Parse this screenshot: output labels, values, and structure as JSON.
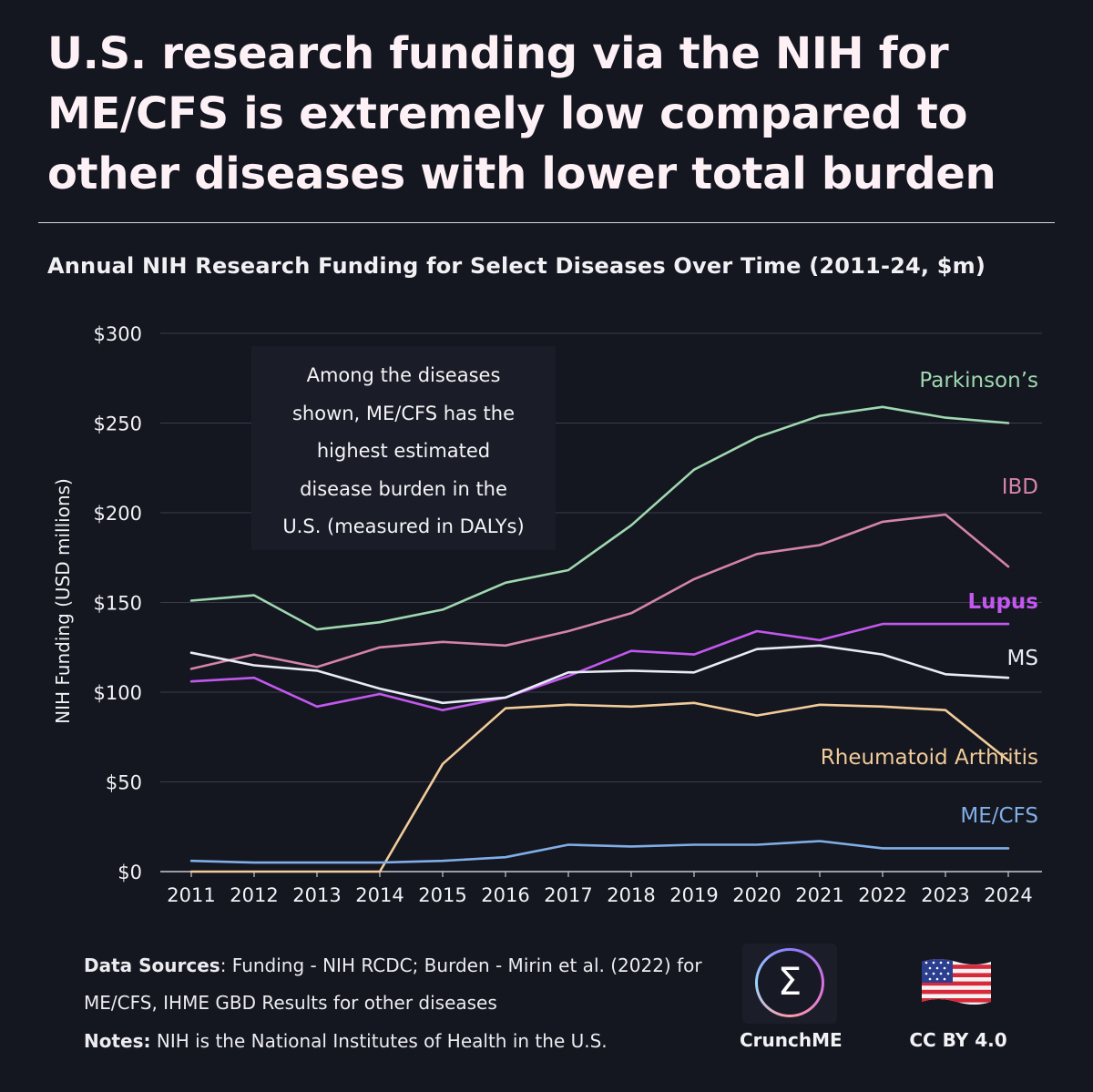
{
  "headline": "U.S. research funding via the NIH for ME/CFS is extremely low compared to other diseases with lower total burden",
  "callout": {
    "lines": [
      "Among the diseases",
      "shown, ME/CFS has the",
      "highest estimated",
      "disease burden in the",
      "U.S. (measured in DALYs)"
    ]
  },
  "footer": {
    "sources_label": "Data Sources",
    "sources_text": ": Funding - NIH RCDC; Burden - Mirin et al. (2022) for ME/CFS, IHME GBD Results for other diseases",
    "notes_label": "Notes:",
    "notes_text": " NIH is the National Institutes of Health in the U.S."
  },
  "branding": {
    "logo_symbol": "Σ",
    "logo_name": "CrunchME",
    "flag_icon": "us-flag-icon",
    "license": "CC BY 4.0"
  },
  "chart_data": {
    "type": "line",
    "title": "Annual NIH Research Funding for Select Diseases Over Time (2011-24, $m)",
    "ylabel": "NIH Funding (USD millions)",
    "xlabel": "",
    "ylim": [
      0,
      300
    ],
    "y_ticks": [
      0,
      50,
      100,
      150,
      200,
      250,
      300
    ],
    "y_tick_labels": [
      "$0",
      "$50",
      "$100",
      "$150",
      "$200",
      "$250",
      "$300"
    ],
    "grid": true,
    "legend": "direct labels at right end of lines",
    "x": [
      "2011",
      "2012",
      "2013",
      "2014",
      "2015",
      "2016",
      "2017",
      "2018",
      "2019",
      "2020",
      "2021",
      "2022",
      "2023",
      "2024"
    ],
    "series": [
      {
        "name": "Parkinson’s",
        "color": "#9fd8b0",
        "values": [
          151,
          154,
          135,
          139,
          146,
          161,
          168,
          193,
          224,
          242,
          254,
          259,
          253,
          250
        ]
      },
      {
        "name": "IBD",
        "color": "#d484a8",
        "values": [
          113,
          121,
          114,
          125,
          128,
          126,
          134,
          144,
          163,
          177,
          182,
          195,
          199,
          170
        ]
      },
      {
        "name": "Lupus",
        "color": "#c258ee",
        "values": [
          106,
          108,
          92,
          99,
          90,
          97,
          109,
          123,
          121,
          134,
          129,
          138,
          138,
          138
        ]
      },
      {
        "name": "MS",
        "color": "#e9ecf6",
        "values": [
          122,
          115,
          112,
          102,
          94,
          97,
          111,
          112,
          111,
          124,
          126,
          121,
          110,
          108
        ]
      },
      {
        "name": "Rheumatoid Arthritis",
        "color": "#f1cc9a",
        "values": [
          0,
          0,
          0,
          0,
          60,
          91,
          93,
          92,
          94,
          87,
          93,
          92,
          90,
          62
        ]
      },
      {
        "name": "ME/CFS",
        "color": "#80aee6",
        "values": [
          6,
          5,
          5,
          5,
          6,
          8,
          15,
          14,
          15,
          15,
          17,
          13,
          13,
          13
        ]
      }
    ]
  }
}
